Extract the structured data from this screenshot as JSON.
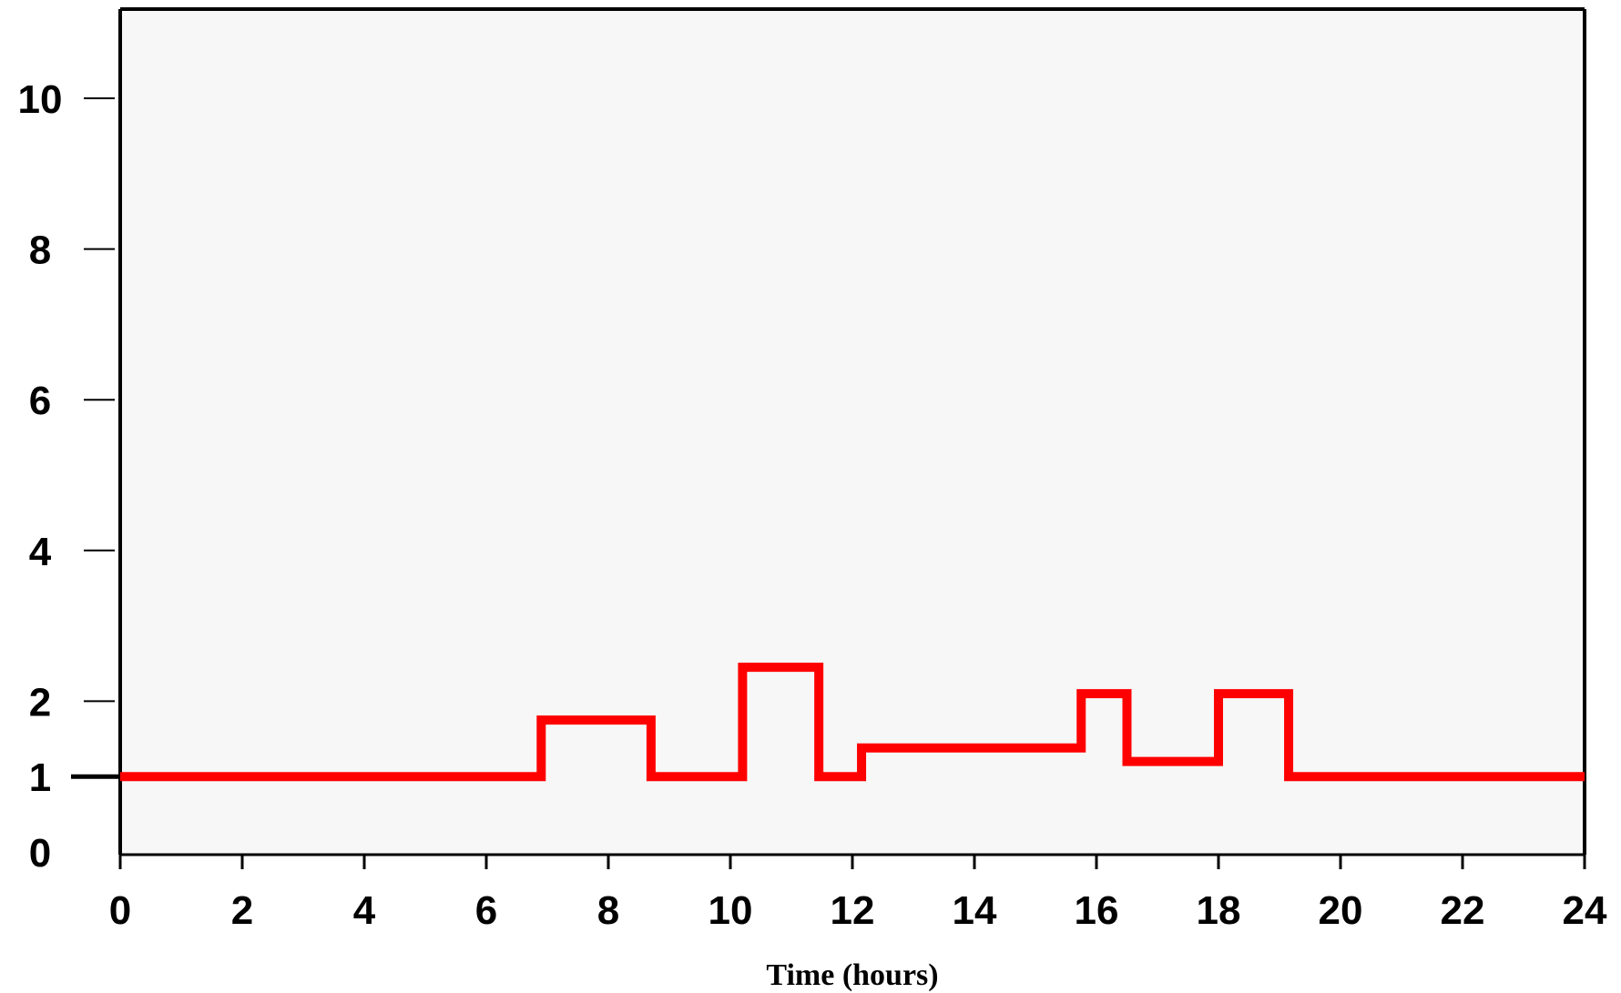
{
  "chart_data": {
    "type": "line",
    "step": true,
    "title": "",
    "xlabel": "Time (hours)",
    "ylabel": "",
    "xlim": [
      0,
      24
    ],
    "ylim": [
      0,
      11
    ],
    "x_ticks": [
      0,
      2,
      4,
      6,
      8,
      10,
      12,
      14,
      16,
      18,
      20,
      22,
      24
    ],
    "x_tick_labels": [
      "0",
      "2",
      "4",
      "6",
      "8",
      "10",
      "12",
      "14",
      "16",
      "18",
      "20",
      "22",
      "24"
    ],
    "y_ticks": [
      0,
      1,
      2,
      4,
      6,
      8,
      10
    ],
    "y_tick_labels": [
      "0",
      "1",
      "2",
      "4",
      "6",
      "8",
      "10"
    ],
    "grid": false,
    "legend": "none",
    "series": [
      {
        "color": "#ff0000",
        "x": [
          0,
          6.9,
          8.7,
          10.2,
          11.45,
          12.15,
          15.75,
          16.5,
          18.0,
          19.15,
          24
        ],
        "values": [
          1.0,
          1.75,
          1.0,
          2.45,
          1.0,
          1.38,
          2.1,
          1.2,
          2.1,
          1.0,
          1.0
        ]
      }
    ],
    "colors": {
      "plot_background": "#f7f7f7",
      "axis": "#000000",
      "line": "#ff0000"
    }
  }
}
